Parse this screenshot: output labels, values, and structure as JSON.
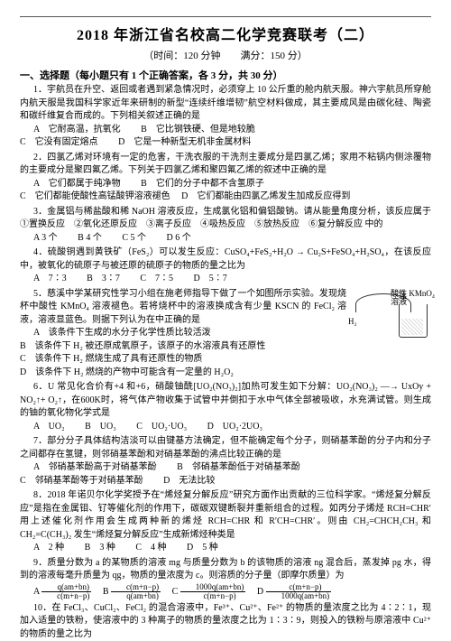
{
  "doc": {
    "title": "2018 年浙江省名校高二化学竞赛联考（二）",
    "subtitle": "（时间：120 分钟　　满分：150 分）",
    "section1": "一、选择题（每小题只有 1 个正确答案，各 3 分，共 30 分）",
    "q1": {
      "stem": "1．宇航员在升空、返回或者遇到紧急情况时，必须穿上 10 公斤重的舱内航天服。神六宇航员所穿舱内航天服是我国科学家近年来研制的新型“连续纤维增韧”航空材料做成，其主要成风是由碳化硅、陶瓷和碳纤维复合而成的。下列相关叙述正确的是",
      "A": "A　它耐高温，抗氧化",
      "B": "B　它比钢铁硬、但是地较脆",
      "C": "C　它没有固定熔点",
      "D": "D　它是一种新型无机非金属材料"
    },
    "q2": {
      "stem": "2．四氯乙烯对环境有一定的危害，干洗衣服的干洗剂主要成分是四氯乙烯；家用不粘锅内侧涂覆物的主要成分是聚四氟乙烯。下列关于四氯乙烯和聚四氟乙烯的叙述中正确的是",
      "A": "A　它们都属于纯净物",
      "B": "B　它们的分子中都不含氢原子",
      "C": "C　它们都能使酸性高锰酸钾溶液褪色",
      "D": "D　它们都能由四氯乙烯发生加成反应得到"
    },
    "q3": {
      "stem": "3．金属铝与稀盐酸和稀 NaOH 溶液反应，生成氯化铝和偏铝酸钠。请从能量角度分析，该反应属于①置换反应　②氧化还原反应　③离子反应　④吸热反应　⑤放热反应　⑥复分解反应 中的",
      "A": "A 3 个",
      "B": "B 4 个",
      "C": "C 5 个",
      "D": "D 6 个"
    },
    "q4": {
      "stem": "4．硫酸铜遇到黄铁矿（FeS₂）可以发生反应：CuSO₄+FeS₂+H₂O → Cu₂S+FeSO₄+H₂SO₄，在该反应中，被氧化的硫原子与被还原的硫原子的物质的量之比为",
      "A": "A　7∶3",
      "B": "B　3∶7",
      "C": "C　7∶5",
      "D": "D　5∶7"
    },
    "q5": {
      "stem": "5．慈溪中学某研究性学习小组在施老师指导下做了一个如图所示实验。发现烧杯中酸性 KMnO₄ 溶液褪色。若将烧杯中的溶液换成含有少量 KSCN 的 FeCl₂ 溶液，溶液显蓝色。则据下列认为在中正确的是",
      "A": "A　该条件下生成的水分子化学性质比较活泼",
      "B": "B　该条件下 H₂ 被还原成氧原子，该原子的水溶液具有还原性",
      "C": "C　该条件下 H₂ 燃烧生成了具有还原性的物质",
      "D": "D　该条件下 H₂ 燃烧的产物中可能含有一定量的 H₂O₂",
      "fig": {
        "left": "H₂",
        "top": "冰",
        "rightLine1": "酸性 KMnO₄",
        "rightLine2": "溶液"
      }
    },
    "q6": {
      "stem": "6．U 常见化合价有+4 和+6，硝酸铀酰[UO₂(NO₃)₂]加热可发生如下分解：UO₂(NO₃)₂ —→ UxOy + NO₂↑+ O₂↑，在600K时，将气体产物收集于试管中并倒扣于水中气体全部被吸收，水充满试管。则生成的铀的氧化物化学式是",
      "A": "A　UO₂",
      "B": "B　UO₃",
      "C": "C　UO₂·UO₃",
      "D": "D　UO₂·2UO₃"
    },
    "q7": {
      "stem": "7．部分分子具体结构洁淡可以由键基方法确定，但不能确定每个分子，则硝基苯酚的分子内和分子之间都存在氢键，则邻硝基苯酚和对硝基苯酚的沸点比较正确的是",
      "A": "A　邻硝基苯酚高于对硝基苯酚",
      "B": "B　邻硝基苯酚低于对硝基苯酚",
      "C": "C　邻硝基苯酚等于对硝基苯酚",
      "D": "D　无法比较"
    },
    "q8": {
      "stem": "8．2018 年诺贝尔化学奖授予在“烯烃复分解反应”研究方面作出贡献的三位科学家。“烯烃复分解反应”是指在金属钼、钌等催化剂的作用下，碳碳双键断裂并重新组合的过程。如丙分子烯烃 RCH=CHR′ 用上述催化剂作用会生成两种新的烯烃 RCH=CHR 和 R′CH=CHR′。则由 CH₂=CHCH₂CH₃ 和 CH₂=C(CH₃)₂ 发生“烯烃复分解反应”生成新烯烃种类是",
      "A": "A　2 种",
      "B": "B　3 种",
      "C": "C　4 种",
      "D": "D　5 种"
    },
    "q9": {
      "stem": "9．质量分数为 a 的某物质的溶液 mg 与质量分数为 b 的该物质的溶液 ng 混合后，蒸发掉 pg 水，得到的溶液每毫升质量为 qg，物质的量浓度为 c。则溶质的分子量（即摩尔质量）为",
      "A_num": "q(am+bn)",
      "A_den": "c(m+n−p)",
      "B_num": "c(m+n−p)",
      "B_den": "q(am+bn)",
      "C_num": "1000q(am+bn)",
      "C_den": "c(m+n−p)",
      "D_num": "c(m+n−p)",
      "D_den": "1000q(am+bn)",
      "A": "A",
      "B": "B",
      "C": "C",
      "D": "D"
    },
    "q10": {
      "stem": "10．在 FeCl₃、CuCl₂、FeCl₂ 的混合溶液中，Fe³⁺、Cu²⁺、Fe²⁺ 的物质的量浓度之比为 4∶2∶1，现加入适量的铁粉，使溶液中的 3 种离子的物质的量浓度之比为 1∶3∶9，则投入的铁粉与原溶液中 Cu²⁺ 的物质的量之比为"
    }
  }
}
